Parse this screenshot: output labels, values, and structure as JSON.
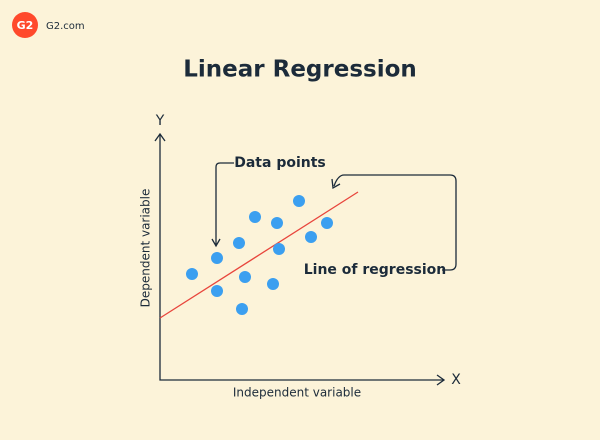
{
  "header": {
    "logo": "G2",
    "site": "G2.com",
    "title": "Linear Regression"
  },
  "axes": {
    "y_letter": "Y",
    "x_letter": "X",
    "y_label": "Dependent variable",
    "x_label": "Independent variable"
  },
  "annotations": {
    "points": "Data points",
    "line": "Line of regression"
  }
}
